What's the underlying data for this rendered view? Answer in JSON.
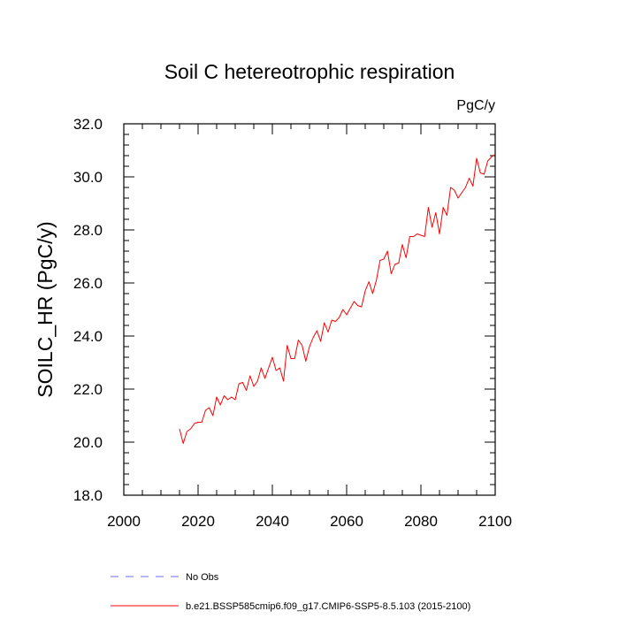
{
  "chart_data": {
    "type": "line",
    "title": "Soil C hetereotrophic respiration",
    "units": "PgC/y",
    "ylabel": "SOILC_HR  (PgC/y)",
    "xlabel": "",
    "xlim": [
      2000,
      2100
    ],
    "ylim": [
      18,
      32
    ],
    "xticks": [
      2000,
      2020,
      2040,
      2060,
      2080,
      2100
    ],
    "xtick_labels": [
      "2000",
      "2020",
      "2040",
      "2060",
      "2080",
      "2100"
    ],
    "yticks": [
      18,
      20,
      22,
      24,
      26,
      28,
      30,
      32
    ],
    "ytick_labels": [
      "18.0",
      "20.0",
      "22.0",
      "24.0",
      "26.0",
      "28.0",
      "30.0",
      "32.0"
    ],
    "grid": false,
    "legend": [
      {
        "label": "No Obs",
        "style": "dashed",
        "color": "#6e6ef0"
      },
      {
        "label": "b.e21.BSSP585cmip6.f09_g17.CMIP6-SSP5-8.5.103 (2015-2100)",
        "style": "solid",
        "color": "#ff0000"
      }
    ],
    "series": [
      {
        "name": "b.e21.BSSP585cmip6.f09_g17.CMIP6-SSP5-8.5.103 (2015-2100)",
        "color": "#ff0000",
        "x": [
          2015,
          2016,
          2017,
          2018,
          2019,
          2020,
          2021,
          2022,
          2023,
          2024,
          2025,
          2026,
          2027,
          2028,
          2029,
          2030,
          2031,
          2032,
          2033,
          2034,
          2035,
          2036,
          2037,
          2038,
          2039,
          2040,
          2041,
          2042,
          2043,
          2044,
          2045,
          2046,
          2047,
          2048,
          2049,
          2050,
          2051,
          2052,
          2053,
          2054,
          2055,
          2056,
          2057,
          2058,
          2059,
          2060,
          2061,
          2062,
          2063,
          2064,
          2065,
          2066,
          2067,
          2068,
          2069,
          2070,
          2071,
          2072,
          2073,
          2074,
          2075,
          2076,
          2077,
          2078,
          2079,
          2080,
          2081,
          2082,
          2083,
          2084,
          2085,
          2086,
          2087,
          2088,
          2089,
          2090,
          2091,
          2092,
          2093,
          2094,
          2095,
          2096,
          2097,
          2098,
          2099,
          2100
        ],
        "values": [
          20.5,
          19.95,
          20.4,
          20.5,
          20.7,
          20.75,
          20.75,
          21.2,
          21.3,
          21.0,
          21.7,
          21.4,
          21.75,
          21.6,
          21.7,
          21.6,
          22.2,
          22.25,
          21.95,
          22.5,
          22.1,
          22.3,
          22.8,
          22.4,
          22.8,
          23.2,
          22.7,
          22.8,
          22.3,
          23.65,
          23.15,
          23.15,
          23.85,
          23.65,
          23.05,
          23.6,
          23.95,
          24.2,
          23.8,
          24.5,
          24.15,
          24.6,
          24.55,
          24.7,
          25.0,
          24.8,
          25.05,
          25.3,
          25.15,
          25.1,
          25.7,
          26.05,
          25.6,
          26.1,
          26.85,
          26.9,
          27.2,
          26.35,
          26.7,
          26.75,
          27.45,
          26.95,
          27.75,
          27.75,
          27.85,
          27.8,
          27.75,
          28.85,
          28.1,
          28.65,
          27.85,
          28.85,
          28.55,
          29.6,
          29.5,
          29.2,
          29.4,
          29.6,
          29.95,
          29.65,
          30.7,
          30.15,
          30.1,
          30.6,
          30.75,
          30.85
        ]
      }
    ]
  }
}
